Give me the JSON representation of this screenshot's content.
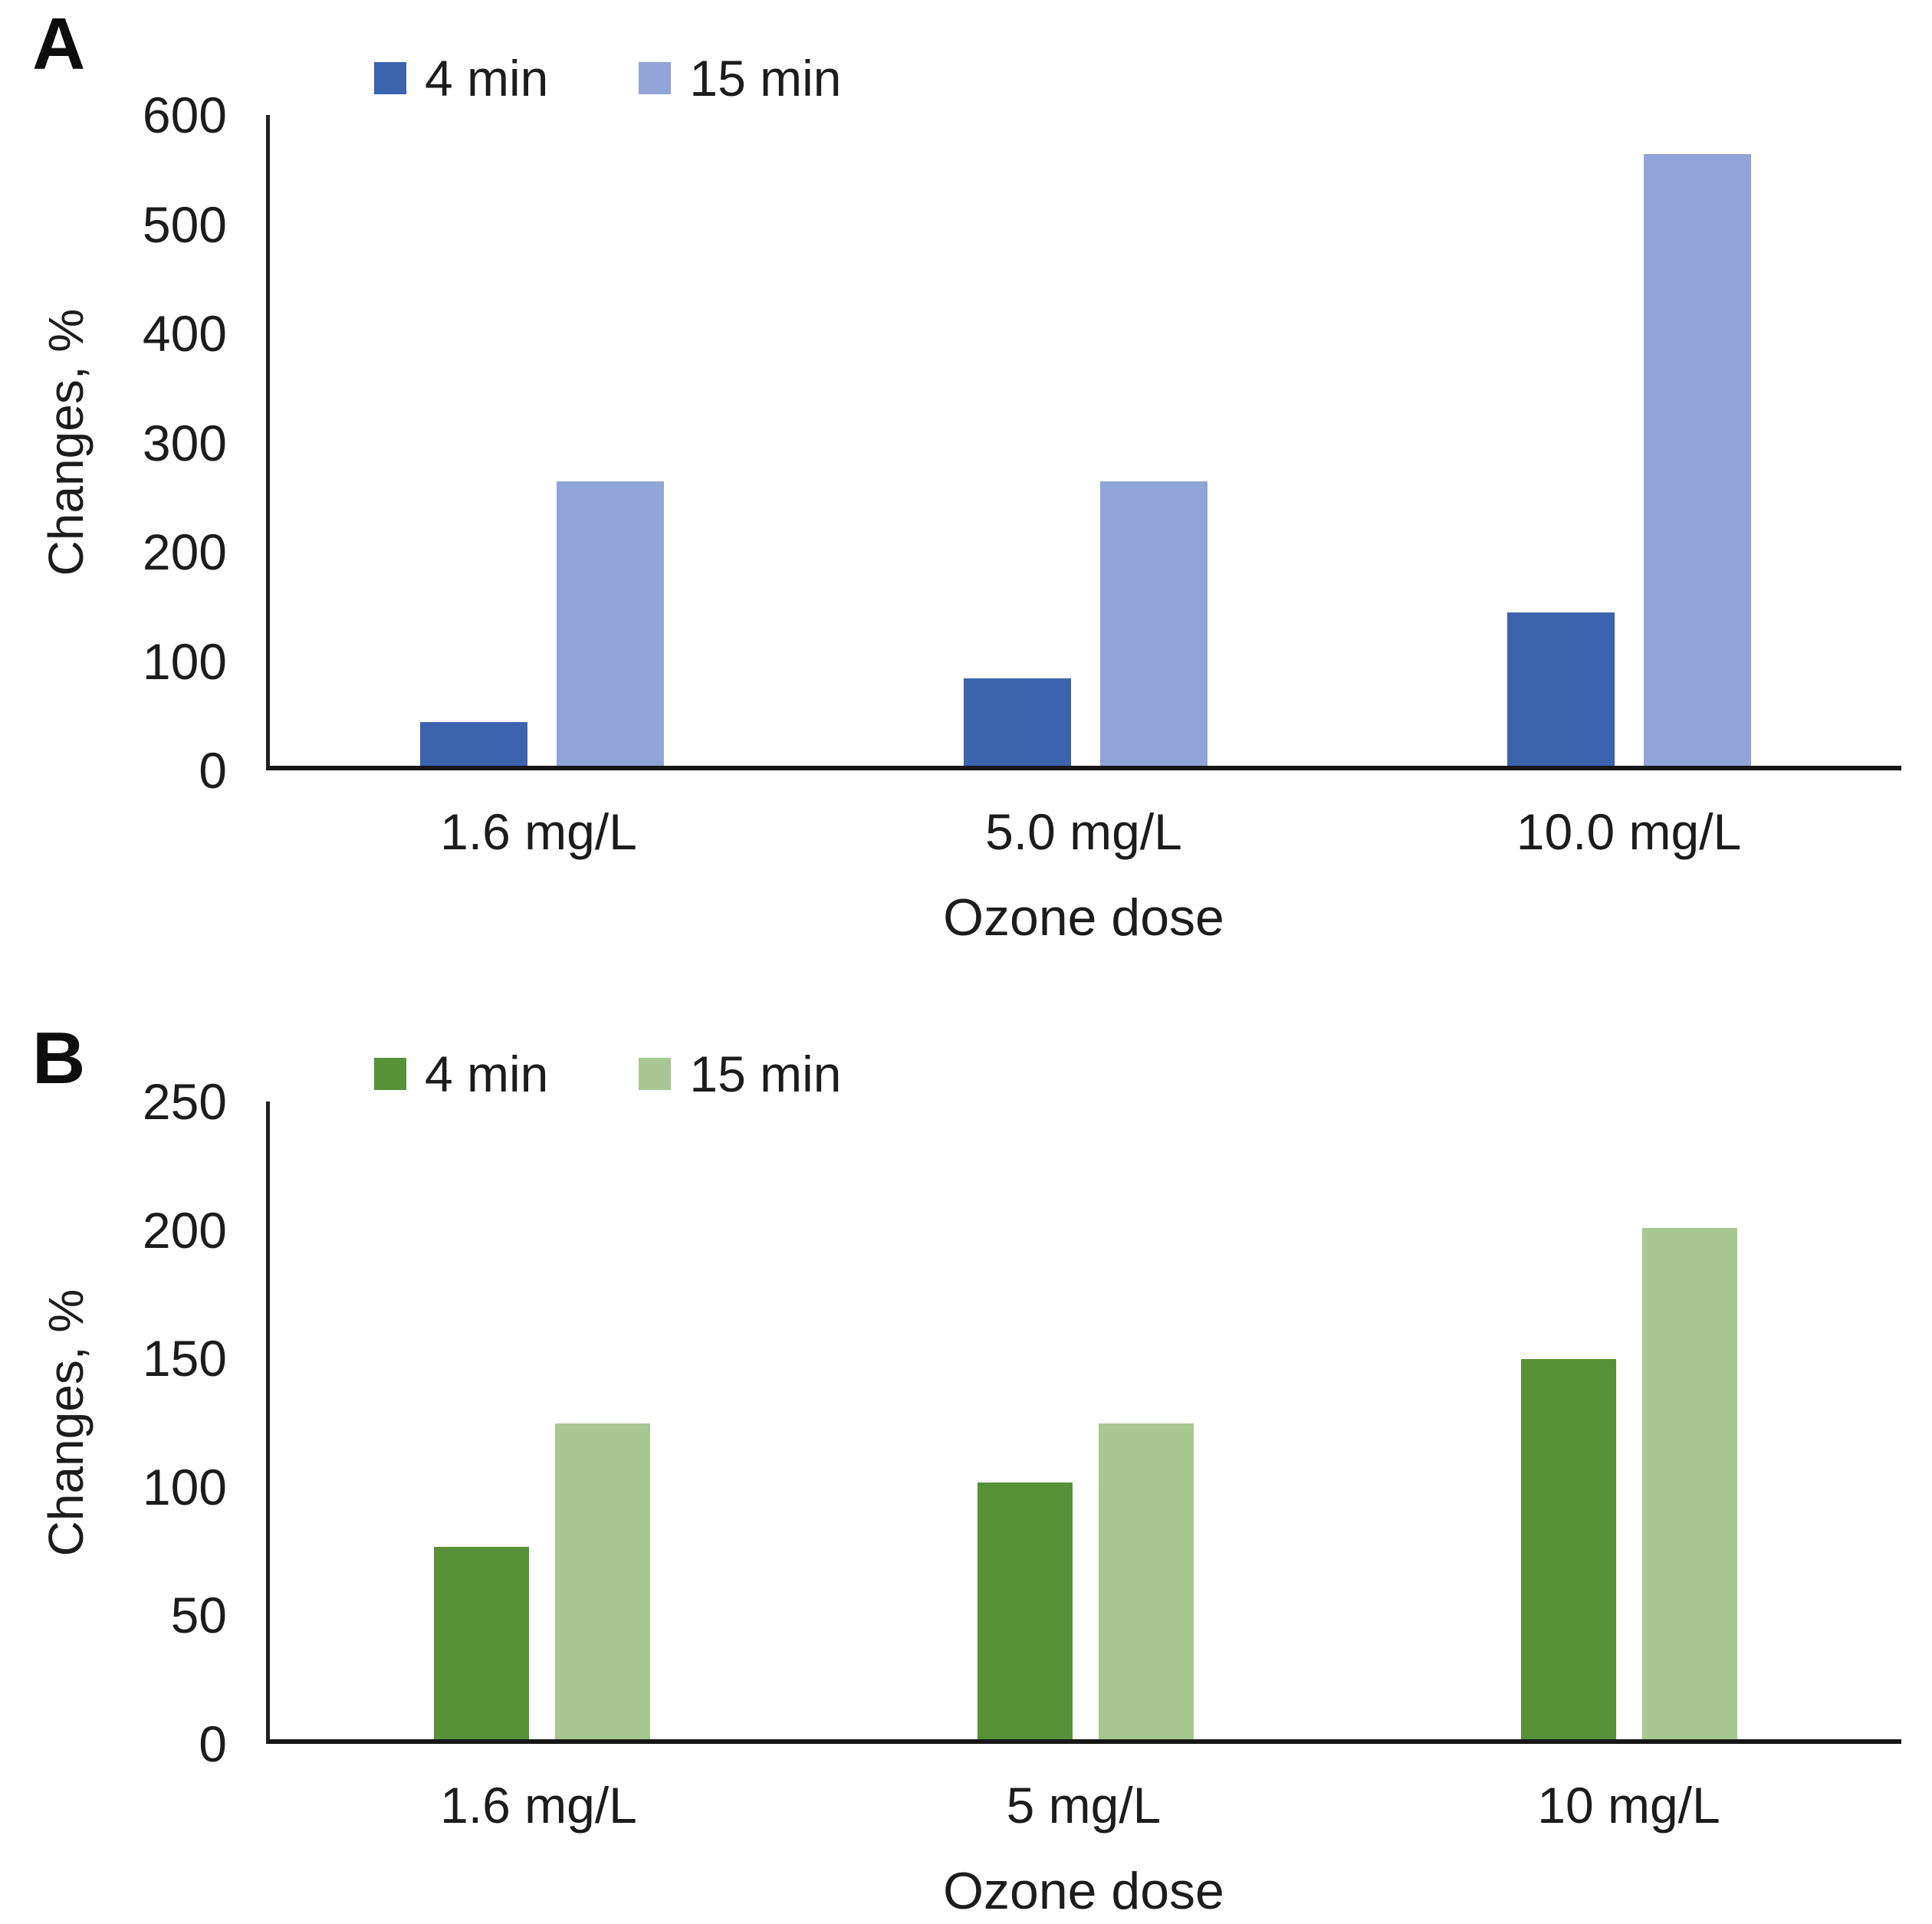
{
  "chart_data": [
    {
      "type": "bar",
      "panel_label": "A",
      "xlabel": "Ozone dose",
      "ylabel": "Changes, %",
      "ylim": [
        0,
        600
      ],
      "yticks": [
        600,
        500,
        400,
        300,
        200,
        100,
        0
      ],
      "categories": [
        "1.6 mg/L",
        "5.0 mg/L",
        "10.0 mg/L"
      ],
      "series": [
        {
          "name": "4 min",
          "color": "#3c63ae",
          "values": [
            40,
            80,
            140
          ]
        },
        {
          "name": "15 min",
          "color": "#91a4d7",
          "values": [
            260,
            260,
            560
          ]
        }
      ],
      "legend_position": "top",
      "grid": false
    },
    {
      "type": "bar",
      "panel_label": "B",
      "xlabel": "Ozone dose",
      "ylabel": "Changes, %",
      "ylim": [
        0,
        250
      ],
      "yticks": [
        250,
        200,
        150,
        100,
        50,
        0
      ],
      "categories": [
        "1.6 mg/L",
        "5 mg/L",
        "10 mg/L"
      ],
      "series": [
        {
          "name": "4 min",
          "color": "#579138",
          "values": [
            75,
            100,
            148
          ]
        },
        {
          "name": "15 min",
          "color": "#a8c793",
          "values": [
            123,
            123,
            199
          ]
        }
      ],
      "legend_position": "top",
      "grid": false
    }
  ]
}
